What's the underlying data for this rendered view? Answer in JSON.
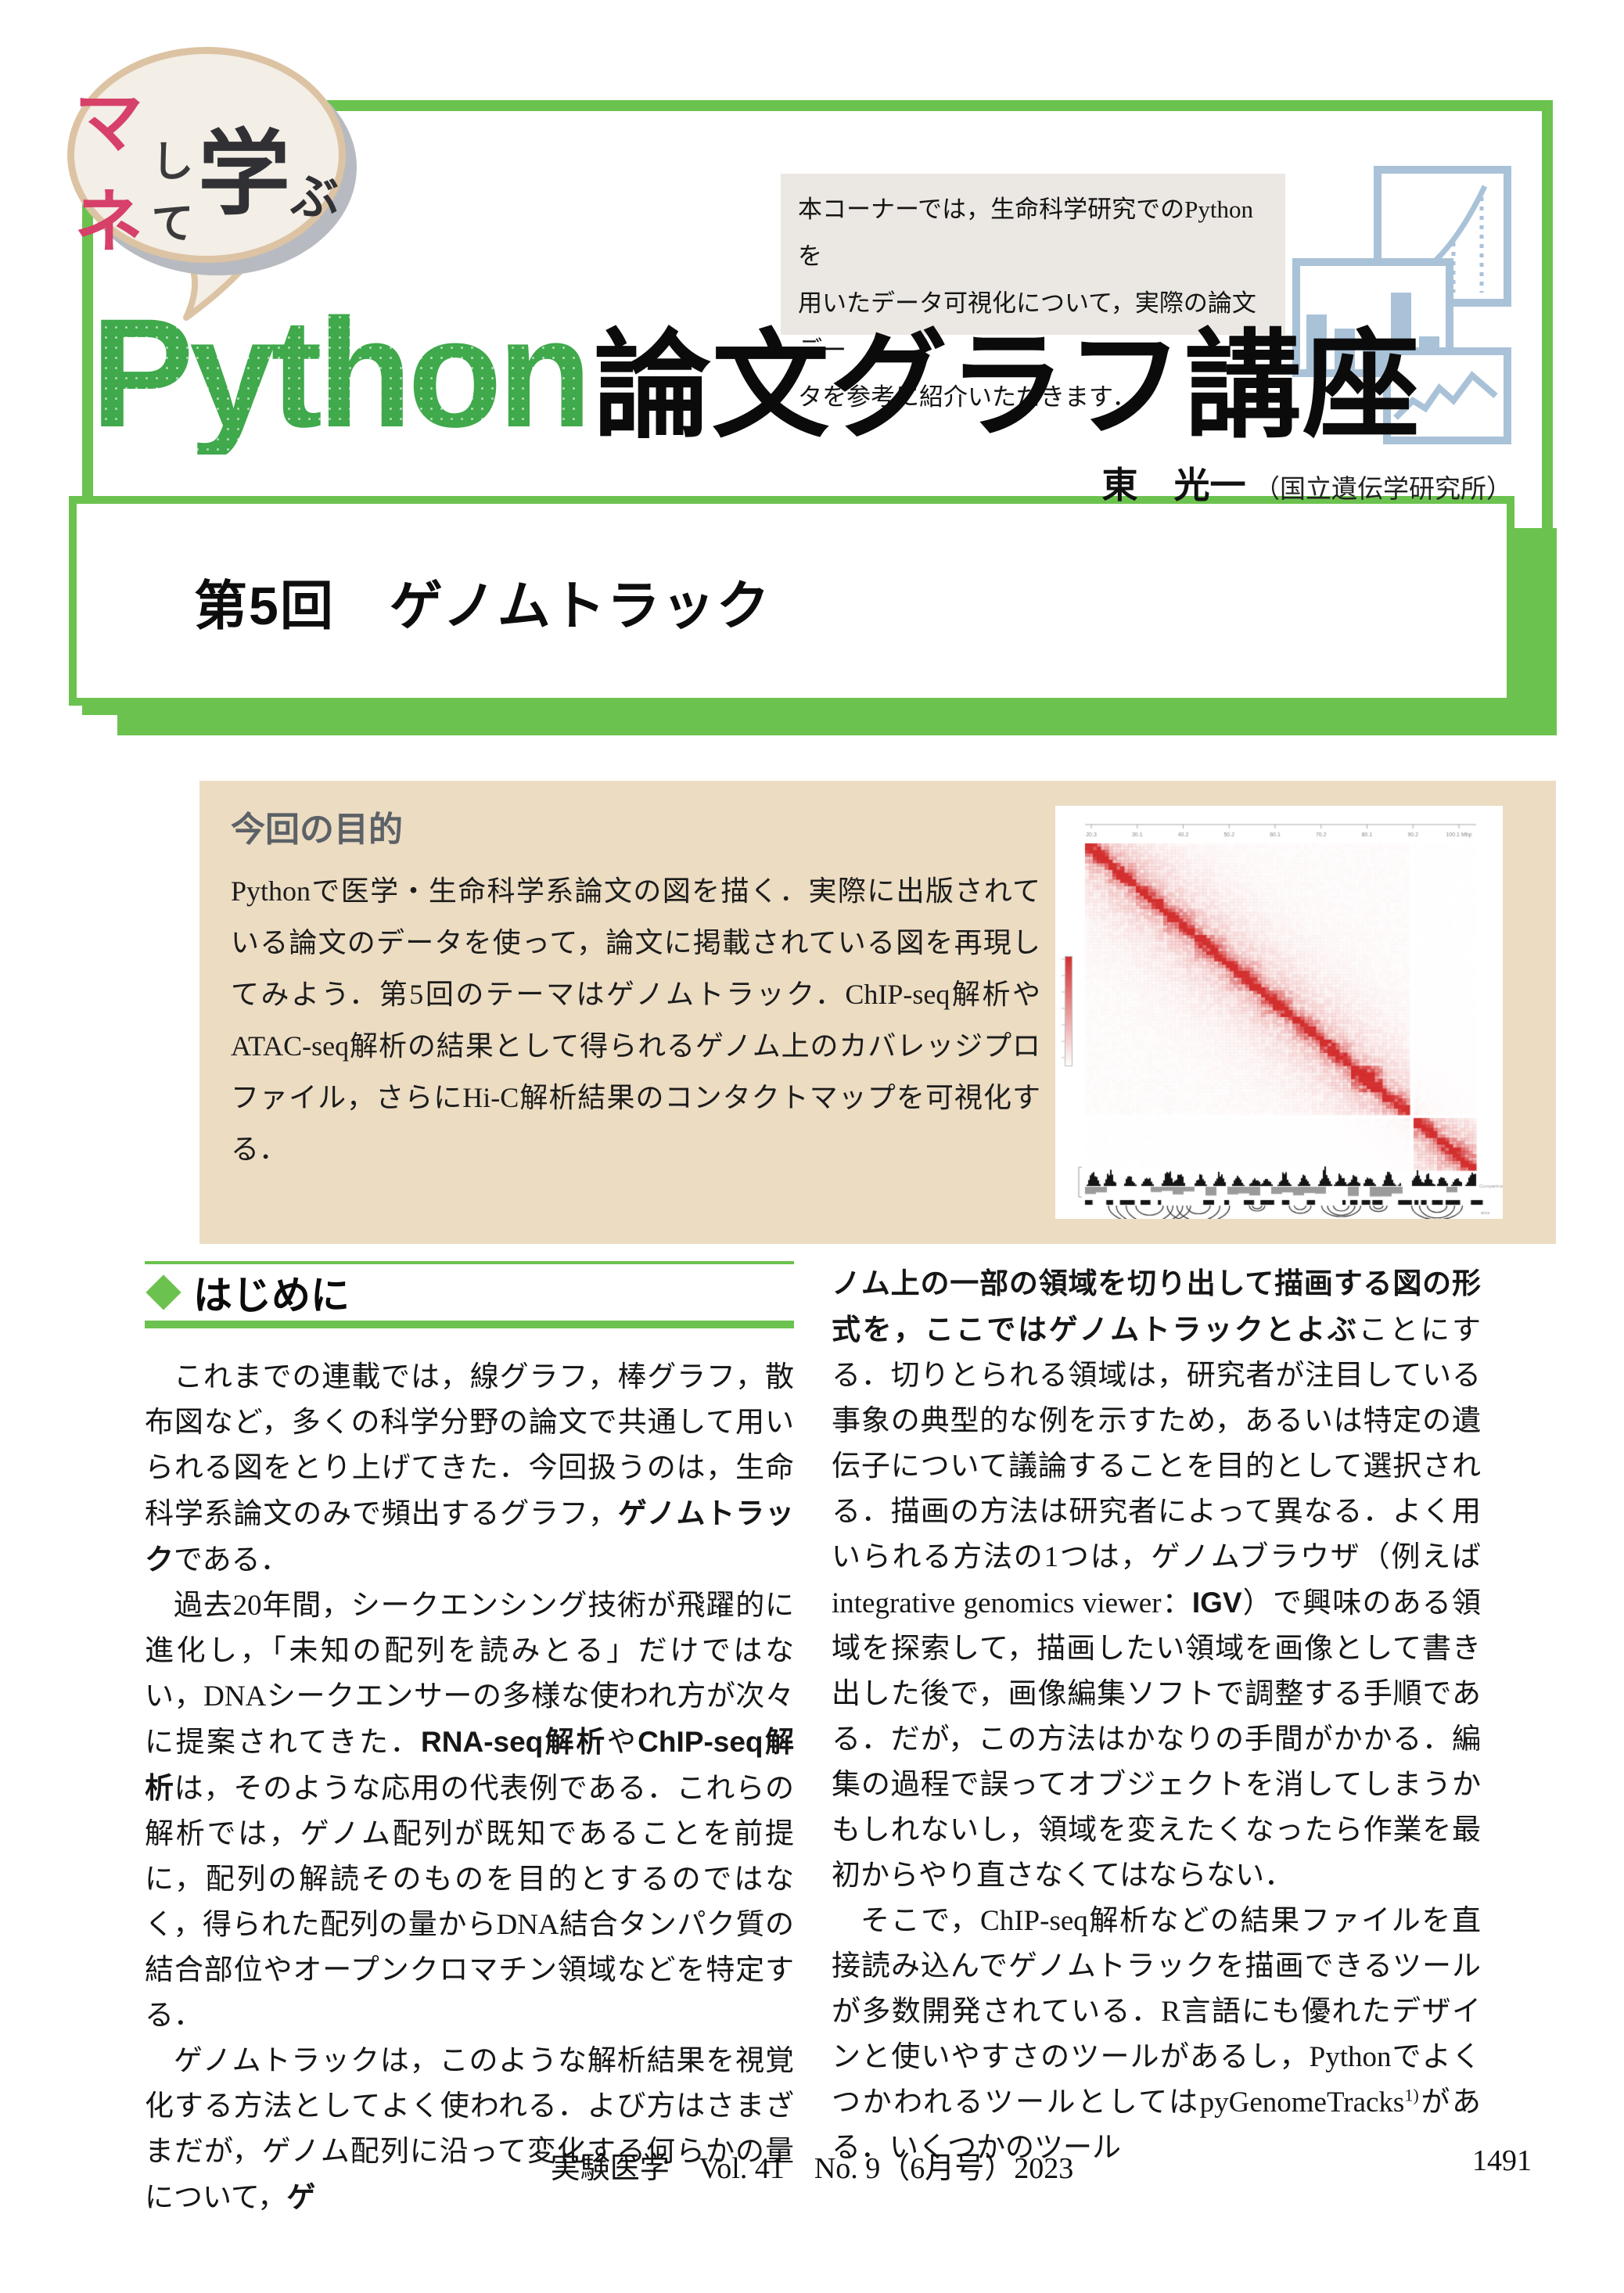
{
  "logo": {
    "mane": "マネ",
    "shite": "して",
    "manabu": "学",
    "bu": "ぶ"
  },
  "note_lines": [
    "本コーナーでは，生命科学研究でのPythonを",
    "用いたデータ可視化について，実際の論文デー",
    "タを参考に紹介いただきます．"
  ],
  "title": {
    "latin": "Python",
    "jp": "論文グラフ講座"
  },
  "author": {
    "name": "東　光一",
    "affiliation": "（国立遺伝学研究所）"
  },
  "episode": {
    "title": "第5回　ゲノムトラック"
  },
  "purpose": {
    "heading": "今回の目的",
    "body": "Pythonで医学・生命科学系論文の図を描く．実際に出版されている論文のデータを使って，論文に掲載されている図を再現してみよう．第5回のテーマはゲノムトラック．ChIP-seq解析やATAC-seq解析の結果として得られるゲノム上のカバレッジプロファイル，さらにHi-C解析結果のコンタクトマップを可視化する．"
  },
  "figure": {
    "type": "heatmap",
    "description": "Hi-C contact map with coverage track and arcs",
    "x_ticks": [
      "20.3",
      "30.1",
      "40.2",
      "50.2",
      "60.1",
      "70.2",
      "80.1",
      "90.2",
      "100.1 Mbp"
    ],
    "track_labels": [
      "Compartment",
      "arcs"
    ],
    "heat_color": "#d32f2f",
    "track_color": "#151515",
    "negative_track_color": "#9b9b9b"
  },
  "section": {
    "heading": "はじめに"
  },
  "columns": {
    "left": [
      {
        "indent": true,
        "segments": [
          {
            "t": "これまでの連載では，線グラフ，棒グラフ，散布図など，多くの科学分野の論文で共通して用いられる図をとり上げてきた．今回扱うのは，生命科学系論文のみで頻出するグラフ，"
          },
          {
            "t": "ゲノムトラック",
            "b": true
          },
          {
            "t": "である．"
          }
        ]
      },
      {
        "indent": true,
        "segments": [
          {
            "t": "過去20年間，シークエンシング技術が飛躍的に進化し，「未知の配列を読みとる」だけではない，DNAシークエンサーの多様な使われ方が次々に提案されてきた．"
          },
          {
            "t": "RNA-seq解析",
            "b": true
          },
          {
            "t": "や"
          },
          {
            "t": "ChIP-seq解析",
            "b": true
          },
          {
            "t": "は，そのような応用の代表例である．これらの解析では，ゲノム配列が既知であることを前提に，配列の解読そのものを目的とするのではなく，得られた配列の量からDNA結合タンパク質の結合部位やオープンクロマチン領域などを特定する．"
          }
        ]
      },
      {
        "indent": true,
        "segments": [
          {
            "t": "ゲノムトラックは，このような解析結果を視覚化する方法としてよく使われる．よび方はさまざまだが，ゲノム配列に沿って変化する何らかの量について，"
          },
          {
            "t": "ゲ",
            "b": true
          }
        ]
      }
    ],
    "right": [
      {
        "indent": false,
        "segments": [
          {
            "t": "ノム上の一部の領域を切り出して描画する図の形式を，ここではゲノムトラックとよぶ",
            "b": true
          },
          {
            "t": "ことにする．切りとられる領域は，研究者が注目している事象の典型的な例を示すため，あるいは特定の遺伝子について議論することを目的として選択される．描画の方法は研究者によって異なる．よく用いられる方法の1つは，ゲノムブラウザ（例えばintegrative genomics viewer："
          },
          {
            "t": "IGV",
            "b": true
          },
          {
            "t": "）で興味のある領域を探索して，描画したい領域を画像として書き出した後で，画像編集ソフトで調整する手順である．だが，この方法はかなりの手間がかかる．編集の過程で誤ってオブジェクトを消してしまうかもしれないし，領域を変えたくなったら作業を最初からやり直さなくてはならない．"
          }
        ]
      },
      {
        "indent": true,
        "segments": [
          {
            "t": "そこで，ChIP-seq解析などの結果ファイルを直接読み込んでゲノムトラックを描画できるツールが多数開発されている．R言語にも優れたデザインと使いやすさのツールがあるし，PythonでよくつかわれるツールとしてはpyGenomeTracks"
          },
          {
            "t": "1)",
            "sup": true
          },
          {
            "t": "がある．いくつかのツール"
          }
        ]
      }
    ]
  },
  "footer": {
    "journal": "実験医学　Vol. 41　No. 9（6月号）2023",
    "page_number": "1491"
  },
  "colors": {
    "accent": "#6cc24f",
    "python_green": "#3fa94b",
    "pink": "#d64069",
    "bubble_fill": "#f3eee6",
    "bubble_border": "#dcc3a3",
    "bubble_shadow": "#b7bac0",
    "note_bg": "#ebe7e2",
    "purpose_bg": "#ecdcc2",
    "purpose_heading": "#5c6167",
    "icon_blue": "#a9c2d8",
    "text": "#1a1a1a"
  }
}
